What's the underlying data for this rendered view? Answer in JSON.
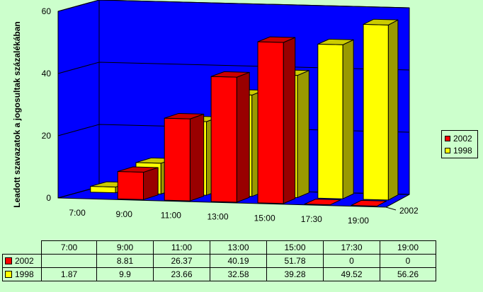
{
  "chart_data": {
    "type": "bar",
    "subtype": "3d-clustered-column",
    "categories": [
      "7:00",
      "9:00",
      "11:00",
      "13:00",
      "15:00",
      "17:30",
      "19:00"
    ],
    "series": [
      {
        "name": "2002",
        "color": "#ff0000",
        "values": [
          null,
          8.81,
          26.37,
          40.19,
          51.78,
          0,
          0
        ]
      },
      {
        "name": "1998",
        "color": "#ffff00",
        "values": [
          1.87,
          9.9,
          23.66,
          32.58,
          39.28,
          49.52,
          56.26
        ]
      }
    ],
    "ylabel": "Leadott szavazatok a jogosultak százalékában",
    "ylim": [
      0,
      60
    ],
    "yticks": [
      "0",
      "20",
      "40",
      "60"
    ],
    "depth_axis_label": "2002",
    "legend_position": "right",
    "wall_color": "#0000ff",
    "floor_color": "#0000ff",
    "background_color": "#ccffcc",
    "grid": true
  },
  "legend": {
    "items": [
      "2002",
      "1998"
    ]
  },
  "data_table": {
    "rows": [
      {
        "name": "2002",
        "cells": [
          "",
          "8.81",
          "26.37",
          "40.19",
          "51.78",
          "0",
          "0"
        ]
      },
      {
        "name": "1998",
        "cells": [
          "1.87",
          "9.9",
          "23.66",
          "32.58",
          "39.28",
          "49.52",
          "56.26"
        ]
      }
    ]
  }
}
